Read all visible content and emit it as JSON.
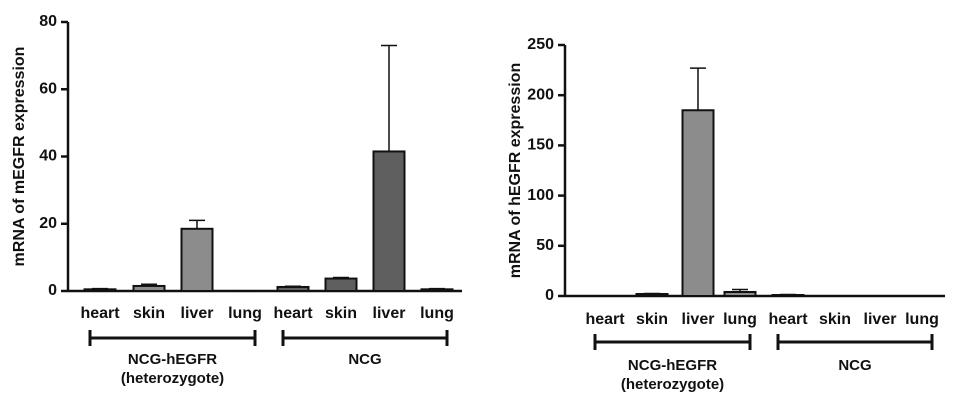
{
  "chart_data": [
    {
      "type": "bar",
      "y_label": "mRNA of mEGFR expression",
      "categories": [
        "heart",
        "skin",
        "liver",
        "lung"
      ],
      "series": [
        {
          "name": "NCG-hEGFR\n(heterozygote)",
          "color": "#8c8c8c",
          "values": [
            0.5,
            1.5,
            18.5,
            0
          ],
          "errors": [
            0.2,
            0.5,
            2.5,
            0
          ]
        },
        {
          "name": "NCG",
          "color": "#5f5f5f",
          "values": [
            1.2,
            3.7,
            41.5,
            0.5
          ],
          "errors": [
            0.2,
            0.3,
            31.5,
            0.2
          ]
        }
      ],
      "ylim": [
        0,
        80
      ],
      "yticks": [
        0,
        20,
        40,
        60,
        80
      ]
    },
    {
      "type": "bar",
      "y_label": "mRNA of hEGFR expression",
      "categories": [
        "heart",
        "skin",
        "liver",
        "lung"
      ],
      "series": [
        {
          "name": "NCG-hEGFR\n(heterozygote)",
          "color": "#8c8c8c",
          "values": [
            0,
            2,
            185,
            4
          ],
          "errors": [
            0,
            0.5,
            42,
            2.5
          ]
        },
        {
          "name": "NCG",
          "color": "#5f5f5f",
          "values": [
            1,
            0,
            0,
            0
          ],
          "errors": [
            0.5,
            0,
            0,
            0
          ]
        }
      ],
      "ylim": [
        0,
        250
      ],
      "yticks": [
        0,
        50,
        100,
        150,
        200,
        250
      ]
    }
  ]
}
